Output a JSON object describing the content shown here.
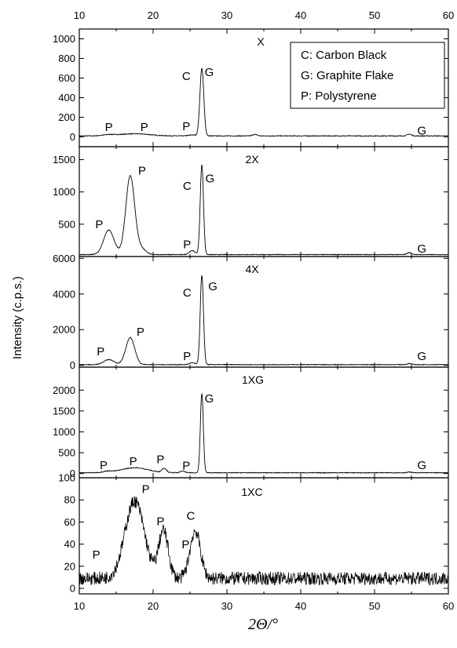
{
  "chart_data": {
    "type": "line",
    "x_label": "2Θ/°",
    "y_label": "Intensity (c.p.s.)",
    "x_range": [
      10,
      60
    ],
    "x_ticks": [
      10,
      20,
      30,
      40,
      50,
      60
    ],
    "legend": {
      "placement": "top-right of first panel",
      "entries": [
        "C: Carbon Black",
        "G: Graphite Flake",
        "P: Polystyrene"
      ]
    },
    "panels": [
      {
        "name": "X",
        "y_range": [
          -100,
          1100
        ],
        "y_ticks": [
          0,
          200,
          400,
          600,
          800,
          1000
        ],
        "baseline": 10,
        "peaks": [
          {
            "x": 14.0,
            "h": 10,
            "w": 0.8
          },
          {
            "x": 17.5,
            "h": 22,
            "w": 2.0
          },
          {
            "x": 25.3,
            "h": 10,
            "w": 0.5
          },
          {
            "x": 26.6,
            "h": 690,
            "w": 0.26
          },
          {
            "x": 33.8,
            "h": 15,
            "w": 0.3
          },
          {
            "x": 54.7,
            "h": 18,
            "w": 0.3
          }
        ],
        "labels": [
          {
            "text": "P",
            "x": 14.0,
            "y": 60
          },
          {
            "text": "P",
            "x": 18.8,
            "y": 60
          },
          {
            "text": "P",
            "x": 24.5,
            "y": 70
          },
          {
            "text": "C",
            "x": 24.5,
            "y": 580
          },
          {
            "text": "G",
            "x": 27.6,
            "y": 620
          },
          {
            "text": "G",
            "x": 56.4,
            "y": 25
          }
        ]
      },
      {
        "name": "2X",
        "y_range": [
          0,
          1700
        ],
        "y_ticks": [
          500,
          1000,
          1500
        ],
        "baseline": 30,
        "peaks": [
          {
            "x": 14.0,
            "h": 380,
            "w": 0.7
          },
          {
            "x": 16.9,
            "h": 1220,
            "w": 0.6
          },
          {
            "x": 18.4,
            "h": 90,
            "w": 0.6
          },
          {
            "x": 25.3,
            "h": 60,
            "w": 0.4
          },
          {
            "x": 26.6,
            "h": 1390,
            "w": 0.22
          },
          {
            "x": 54.7,
            "h": 30,
            "w": 0.3
          }
        ],
        "labels": [
          {
            "text": "P",
            "x": 12.7,
            "y": 440
          },
          {
            "text": "P",
            "x": 18.5,
            "y": 1270
          },
          {
            "text": "P",
            "x": 24.6,
            "y": 130
          },
          {
            "text": "C",
            "x": 24.6,
            "y": 1030
          },
          {
            "text": "G",
            "x": 27.7,
            "y": 1150
          },
          {
            "text": "G",
            "x": 56.4,
            "y": 60
          }
        ]
      },
      {
        "name": "4X",
        "y_range": [
          -100,
          6100
        ],
        "y_ticks": [
          0,
          2000,
          4000,
          6000
        ],
        "baseline": 40,
        "peaks": [
          {
            "x": 14.0,
            "h": 280,
            "w": 0.7
          },
          {
            "x": 16.9,
            "h": 1520,
            "w": 0.6
          },
          {
            "x": 25.3,
            "h": 100,
            "w": 0.4
          },
          {
            "x": 26.6,
            "h": 5000,
            "w": 0.22
          },
          {
            "x": 54.7,
            "h": 60,
            "w": 0.3
          }
        ],
        "labels": [
          {
            "text": "P",
            "x": 12.9,
            "y": 550
          },
          {
            "text": "P",
            "x": 18.3,
            "y": 1650
          },
          {
            "text": "P",
            "x": 24.6,
            "y": 300
          },
          {
            "text": "C",
            "x": 24.6,
            "y": 3850
          },
          {
            "text": "G",
            "x": 28.1,
            "y": 4200
          },
          {
            "text": "G",
            "x": 56.4,
            "y": 300
          }
        ]
      },
      {
        "name": "1XG",
        "y_range": [
          -100,
          2550
        ],
        "y_ticks": [
          0,
          500,
          1000,
          1500,
          2000
        ],
        "baseline": 20,
        "peaks": [
          {
            "x": 13.8,
            "h": 30,
            "w": 0.6
          },
          {
            "x": 17.5,
            "h": 120,
            "w": 1.8
          },
          {
            "x": 21.5,
            "h": 100,
            "w": 0.3
          },
          {
            "x": 24.0,
            "h": 40,
            "w": 0.3
          },
          {
            "x": 26.6,
            "h": 1900,
            "w": 0.2
          },
          {
            "x": 54.7,
            "h": 15,
            "w": 0.3
          }
        ],
        "labels": [
          {
            "text": "P",
            "x": 13.3,
            "y": 110
          },
          {
            "text": "P",
            "x": 17.3,
            "y": 200
          },
          {
            "text": "P",
            "x": 21.0,
            "y": 250
          },
          {
            "text": "P",
            "x": 24.5,
            "y": 100
          },
          {
            "text": "G",
            "x": 27.6,
            "y": 1700
          },
          {
            "text": "G",
            "x": 56.4,
            "y": 110
          }
        ]
      },
      {
        "name": "1XC",
        "y_range": [
          -5,
          100
        ],
        "y_ticks": [
          0,
          20,
          40,
          60,
          80,
          100
        ],
        "baseline": 9,
        "noise": 6,
        "peaks": [
          {
            "x": 17.5,
            "h": 70,
            "w": 1.3
          },
          {
            "x": 21.4,
            "h": 43,
            "w": 0.65
          },
          {
            "x": 25.7,
            "h": 43,
            "w": 0.7
          }
        ],
        "labels": [
          {
            "text": "P",
            "x": 12.3,
            "y": 27
          },
          {
            "text": "P",
            "x": 19.0,
            "y": 86
          },
          {
            "text": "P",
            "x": 21.0,
            "y": 57
          },
          {
            "text": "P",
            "x": 24.4,
            "y": 36
          },
          {
            "text": "C",
            "x": 25.1,
            "y": 62
          }
        ]
      }
    ]
  }
}
